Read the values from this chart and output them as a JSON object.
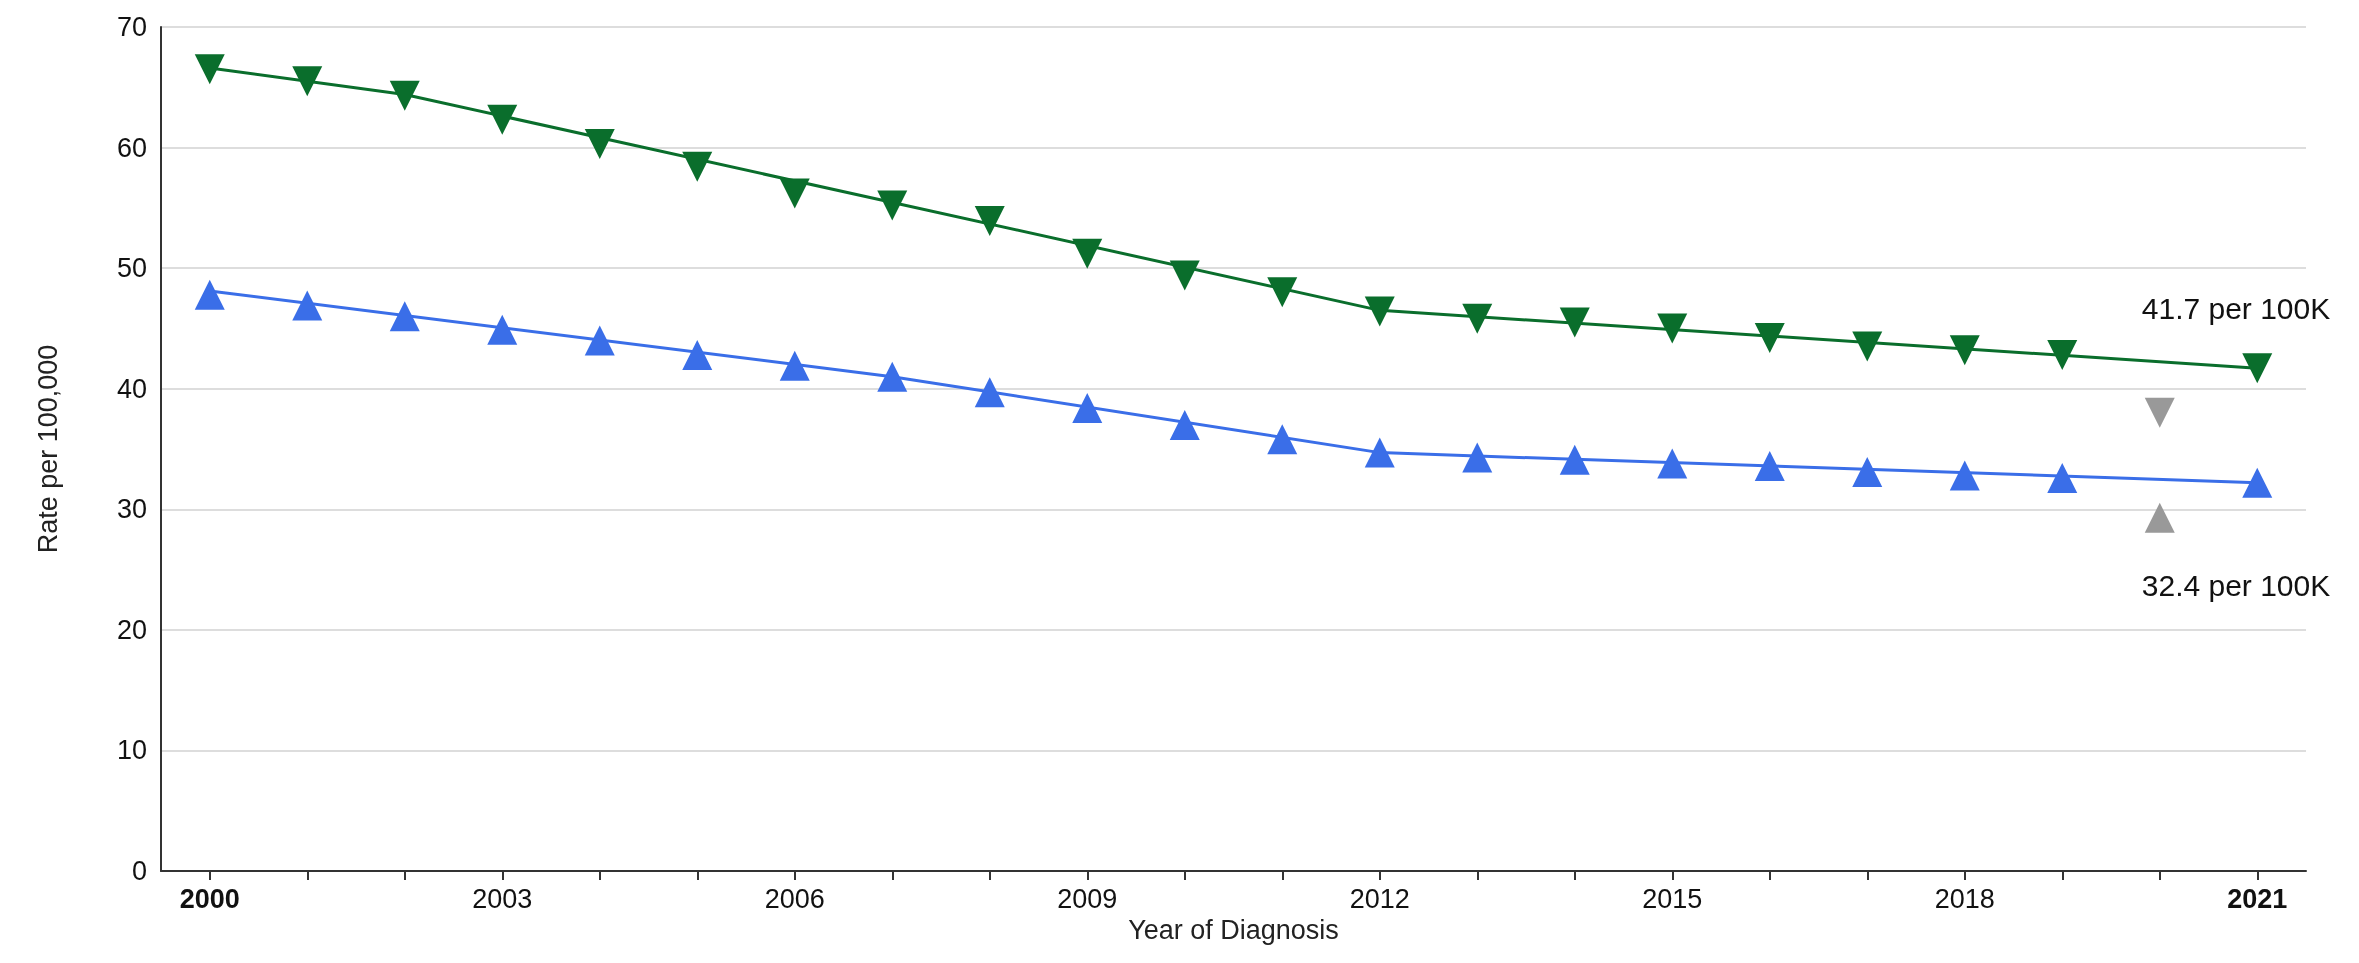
{
  "chart_data": {
    "type": "line",
    "xlabel": "Year of Diagnosis",
    "ylabel": "Rate per 100,000",
    "xlim": [
      1999.5,
      2021.5
    ],
    "xticks": [
      {
        "value": 2000,
        "label": "2000"
      },
      {
        "value": 2001,
        "label": null
      },
      {
        "value": 2002,
        "label": null
      },
      {
        "value": 2003,
        "label": "2003"
      },
      {
        "value": 2004,
        "label": null
      },
      {
        "value": 2005,
        "label": null
      },
      {
        "value": 2006,
        "label": "2006"
      },
      {
        "value": 2007,
        "label": null
      },
      {
        "value": 2008,
        "label": null
      },
      {
        "value": 2009,
        "label": "2009"
      },
      {
        "value": 2010,
        "label": null
      },
      {
        "value": 2011,
        "label": null
      },
      {
        "value": 2012,
        "label": "2012"
      },
      {
        "value": 2013,
        "label": null
      },
      {
        "value": 2014,
        "label": null
      },
      {
        "value": 2015,
        "label": "2015"
      },
      {
        "value": 2016,
        "label": null
      },
      {
        "value": 2017,
        "label": null
      },
      {
        "value": 2018,
        "label": "2018"
      },
      {
        "value": 2019,
        "label": null
      },
      {
        "value": 2020,
        "label": null
      },
      {
        "value": 2021,
        "label": "2021"
      }
    ],
    "ylim": [
      0,
      70
    ],
    "yticks": [
      0,
      10,
      20,
      30,
      40,
      50,
      60,
      70
    ],
    "grid": "y",
    "series": [
      {
        "color": "#0a6e2c",
        "marker": "none",
        "x": [
          2000,
          2002,
          2012,
          2021
        ],
        "values": [
          66.6,
          64.4,
          46.5,
          41.7
        ]
      },
      {
        "color": "#3a6ee8",
        "marker": "none",
        "x": [
          2000,
          2007,
          2012,
          2021
        ],
        "values": [
          48.1,
          41.0,
          34.7,
          32.2
        ]
      },
      {
        "type": "scatter",
        "color": "#0a6e2c",
        "marker": "triangle-down",
        "x": [
          2000,
          2001,
          2002,
          2003,
          2004,
          2005,
          2006,
          2007,
          2008,
          2009,
          2010,
          2011,
          2012,
          2013,
          2014,
          2015,
          2016,
          2017,
          2018,
          2019,
          2020,
          2021
        ],
        "values": [
          66.5,
          65.5,
          64.3,
          62.3,
          60.3,
          58.4,
          56.2,
          55.2,
          53.9,
          51.2,
          49.4,
          48.0,
          46.4,
          45.8,
          45.5,
          45.0,
          44.2,
          43.5,
          43.2,
          42.8,
          38.0,
          41.7
        ],
        "colors": [
          "#0a6e2c",
          "#0a6e2c",
          "#0a6e2c",
          "#0a6e2c",
          "#0a6e2c",
          "#0a6e2c",
          "#0a6e2c",
          "#0a6e2c",
          "#0a6e2c",
          "#0a6e2c",
          "#0a6e2c",
          "#0a6e2c",
          "#0a6e2c",
          "#0a6e2c",
          "#0a6e2c",
          "#0a6e2c",
          "#0a6e2c",
          "#0a6e2c",
          "#0a6e2c",
          "#0a6e2c",
          "#999999",
          "#0a6e2c"
        ]
      },
      {
        "type": "scatter",
        "color": "#3a6ee8",
        "marker": "triangle",
        "x": [
          2000,
          2001,
          2002,
          2003,
          2004,
          2005,
          2006,
          2007,
          2008,
          2009,
          2010,
          2011,
          2012,
          2013,
          2014,
          2015,
          2016,
          2017,
          2018,
          2019,
          2020,
          2021
        ],
        "values": [
          47.8,
          46.9,
          46.0,
          44.9,
          44.0,
          42.8,
          41.9,
          41.0,
          39.7,
          38.4,
          37.0,
          35.8,
          34.7,
          34.3,
          34.1,
          33.8,
          33.6,
          33.1,
          32.8,
          32.6,
          29.3,
          32.2
        ],
        "colors": [
          "#3a6ee8",
          "#3a6ee8",
          "#3a6ee8",
          "#3a6ee8",
          "#3a6ee8",
          "#3a6ee8",
          "#3a6ee8",
          "#3a6ee8",
          "#3a6ee8",
          "#3a6ee8",
          "#3a6ee8",
          "#3a6ee8",
          "#3a6ee8",
          "#3a6ee8",
          "#3a6ee8",
          "#3a6ee8",
          "#3a6ee8",
          "#3a6ee8",
          "#3a6ee8",
          "#3a6ee8",
          "#999999",
          "#3a6ee8"
        ]
      }
    ],
    "annotations": [
      {
        "text": "41.7 per 100K",
        "x": 2021,
        "y": 41.7
      },
      {
        "text": "32.4 per 100K",
        "x": 2021,
        "y": 32.4
      }
    ]
  }
}
